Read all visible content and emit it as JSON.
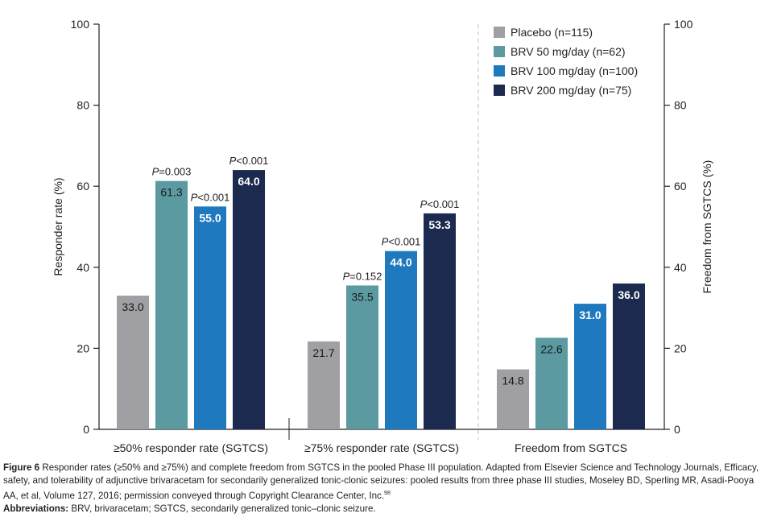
{
  "chart_data": {
    "type": "bar",
    "categories": [
      "≥50% responder rate (SGTCS)",
      "≥75% responder rate (SGTCS)",
      "Freedom from SGTCS"
    ],
    "series": [
      {
        "name": "Placebo (n=115)",
        "color": "#a09fa4",
        "values": [
          33.0,
          21.7,
          14.8
        ]
      },
      {
        "name": "BRV 50 mg/day (n=62)",
        "color": "#5a9aa0",
        "values": [
          61.3,
          35.5,
          22.6
        ]
      },
      {
        "name": "BRV 100 mg/day (n=100)",
        "color": "#1f79be",
        "values": [
          55.0,
          44.0,
          31.0
        ]
      },
      {
        "name": "BRV 200 mg/day (n=75)",
        "color": "#1b2a4e",
        "values": [
          64.0,
          53.3,
          36.0
        ]
      }
    ],
    "value_labels": [
      [
        "33.0",
        "21.7",
        "14.8"
      ],
      [
        "61.3",
        "35.5",
        "22.6"
      ],
      [
        "55.0",
        "44.0",
        "31.0"
      ],
      [
        "64.0",
        "53.3",
        "36.0"
      ]
    ],
    "p_values": [
      [
        null,
        null,
        null
      ],
      [
        "=0.003",
        "=0.152",
        null
      ],
      [
        "<0.001",
        "<0.001",
        null
      ],
      [
        "<0.001",
        "<0.001",
        null
      ]
    ],
    "p_prefix": "P",
    "ylabel": "Responder rate (%)",
    "y2label": "Freedom from SGTCS (%)",
    "ylim": [
      0,
      100
    ],
    "yticks": [
      0,
      20,
      40,
      60,
      80,
      100
    ],
    "grid": false,
    "legend_position": "top-right",
    "label_color_light": "#ffffff",
    "label_color_dark": "#1a1a1a"
  },
  "caption": {
    "figure_label": "Figure 6",
    "text": " Responder rates (≥50% and ≥75%) and complete freedom from SGTCS in the pooled Phase III population. Adapted from Elsevier Science and Technology Journals, Efficacy, safety, and tolerability of adjunctive brivaracetam for secondarily generalized tonic-clonic seizures: pooled results from three phase III studies, Moseley BD, Sperling MR, Asadi-Pooya AA, et al, Volume 127, 2016; permission conveyed through Copyright Clearance Center, Inc.",
    "ref": "98",
    "abbrev_label": "Abbreviations:",
    "abbrev_text": " BRV, brivaracetam; SGTCS, secondarily generalized tonic–clonic seizure."
  }
}
